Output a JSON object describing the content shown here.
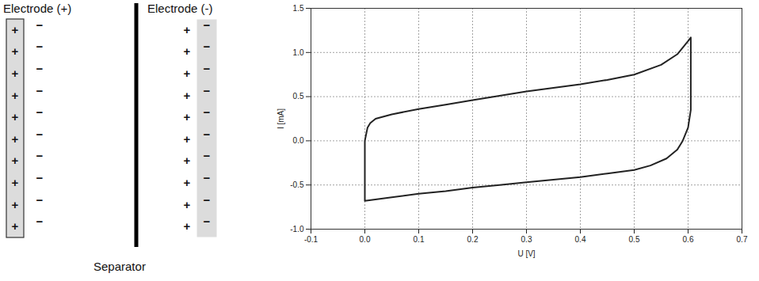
{
  "diagram": {
    "electrode_positive": {
      "label": "Electrode (+)",
      "inner_sign": "+",
      "outer_sign": "−",
      "count": 10
    },
    "electrode_negative": {
      "label": "Electrode (-)",
      "outer_sign": "+",
      "inner_sign": "−",
      "count": 10
    },
    "separator": {
      "label": "Separator"
    }
  },
  "chart_data": {
    "type": "line",
    "xlabel": "U [V]",
    "ylabel": "I [mA]",
    "x": [
      0.0,
      0.0,
      0.005,
      0.01,
      0.02,
      0.05,
      0.1,
      0.15,
      0.2,
      0.25,
      0.3,
      0.35,
      0.4,
      0.45,
      0.5,
      0.55,
      0.58,
      0.6,
      0.605,
      0.605,
      0.6,
      0.59,
      0.58,
      0.56,
      0.53,
      0.5,
      0.45,
      0.4,
      0.35,
      0.3,
      0.25,
      0.2,
      0.15,
      0.1,
      0.05,
      0.0
    ],
    "values": [
      -0.68,
      0.0,
      0.15,
      0.2,
      0.25,
      0.3,
      0.36,
      0.41,
      0.46,
      0.51,
      0.56,
      0.6,
      0.64,
      0.69,
      0.75,
      0.86,
      0.98,
      1.13,
      1.17,
      0.35,
      0.15,
      0.0,
      -0.1,
      -0.2,
      -0.28,
      -0.33,
      -0.37,
      -0.41,
      -0.44,
      -0.47,
      -0.5,
      -0.53,
      -0.57,
      -0.6,
      -0.64,
      -0.68
    ],
    "color": "#222222",
    "xlim": [
      -0.1,
      0.7
    ],
    "xticks": [
      -0.1,
      {
        "value": 0,
        "label": "0.0"
      },
      0.1,
      0.2,
      0.3,
      0.4,
      0.5,
      0.6,
      0.7
    ],
    "ylim": [
      -1.0,
      1.5
    ],
    "yticks": [
      {
        "value": -1.0,
        "label": "-1.0"
      },
      -0.5,
      {
        "value": 0,
        "label": "0.0"
      },
      0.5,
      {
        "value": 1.0,
        "label": "1.0"
      },
      1.5
    ],
    "grid": true
  }
}
